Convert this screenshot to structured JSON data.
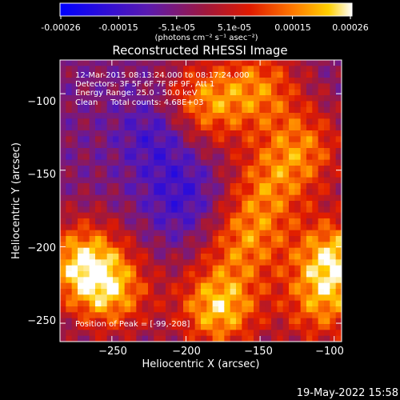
{
  "colors": {
    "background": "#000000",
    "text": "#ffffff",
    "colormap": [
      "#000000",
      "#0000ff",
      "#6a1aa8",
      "#a0183c",
      "#e01a00",
      "#ff7a00",
      "#ffd000",
      "#ffffff"
    ]
  },
  "footer": {
    "timestamp": "19-May-2022 15:58"
  },
  "colorbar": {
    "tick_labels": [
      "-0.00026",
      "-0.00015",
      "-5.1e-05",
      "5.1e-05",
      "0.00015",
      "0.00026"
    ],
    "unit_label": "(photons cm⁻² s⁻¹ asec⁻²)"
  },
  "chart_data": {
    "type": "heatmap",
    "title": "Reconstructed RHESSI Image",
    "xlabel": "Heliocentric X (arcsec)",
    "ylabel": "Heliocentric Y (arcsec)",
    "xlim": [
      -285,
      -95
    ],
    "ylim": [
      -262,
      -78
    ],
    "x_ticks": [
      -250,
      -200,
      -150,
      -100
    ],
    "x_tick_labels": [
      "−250",
      "−200",
      "−150",
      "−100"
    ],
    "y_ticks": [
      -100,
      -150,
      -200,
      -250
    ],
    "y_tick_labels": [
      "−100",
      "−150",
      "−200",
      "−250"
    ],
    "value_range": [
      -0.00026,
      0.00026
    ],
    "grid": false,
    "annotations": [
      "12-Mar-2015 08:13:24.000 to 08:17:24.000",
      "Detectors: 3F 5F 6F 7F 8F 9F, Att 1",
      "Energy Range: 25.0 - 50.0 keV",
      "Clean     Total counts: 4.68E+03"
    ],
    "peak_label": "Position of Peak = [-99,-208]",
    "bright_regions": [
      {
        "x": -190,
        "y": -108,
        "value": 0.00022
      },
      {
        "x": -150,
        "y": -95,
        "value": 0.00018
      },
      {
        "x": -270,
        "y": -210,
        "value": 0.00024
      },
      {
        "x": -250,
        "y": -230,
        "value": 0.0002
      },
      {
        "x": -178,
        "y": -240,
        "value": 0.00026
      },
      {
        "x": -160,
        "y": -195,
        "value": 0.00018
      },
      {
        "x": -145,
        "y": -160,
        "value": 0.00015
      },
      {
        "x": -120,
        "y": -135,
        "value": 0.00017
      },
      {
        "x": -99,
        "y": -208,
        "value": 0.00026
      },
      {
        "x": -110,
        "y": -240,
        "value": 0.00016
      }
    ],
    "dim_regions": [
      {
        "x": -215,
        "y": -125,
        "value": -0.00012
      },
      {
        "x": -200,
        "y": -170,
        "value": -0.0001
      }
    ]
  }
}
